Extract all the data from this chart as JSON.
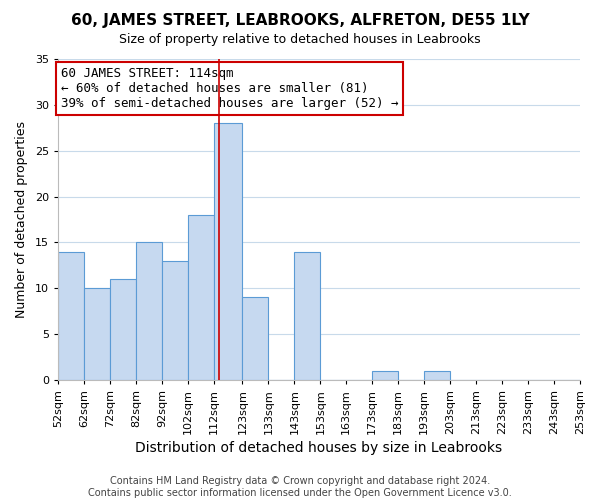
{
  "title": "60, JAMES STREET, LEABROOKS, ALFRETON, DE55 1LY",
  "subtitle": "Size of property relative to detached houses in Leabrooks",
  "xlabel": "Distribution of detached houses by size in Leabrooks",
  "ylabel": "Number of detached properties",
  "footer_line1": "Contains HM Land Registry data © Crown copyright and database right 2024.",
  "footer_line2": "Contains public sector information licensed under the Open Government Licence v3.0.",
  "annotation_title": "60 JAMES STREET: 114sqm",
  "annotation_line2": "← 60% of detached houses are smaller (81)",
  "annotation_line3": "39% of semi-detached houses are larger (52) →",
  "bar_edges": [
    52,
    62,
    72,
    82,
    92,
    102,
    112,
    123,
    133,
    143,
    153,
    163,
    173,
    183,
    193,
    203,
    213,
    223,
    233,
    243,
    253
  ],
  "bar_heights": [
    14,
    10,
    11,
    15,
    13,
    18,
    28,
    9,
    0,
    14,
    0,
    0,
    1,
    0,
    1,
    0,
    0,
    0,
    0,
    0
  ],
  "bar_color": "#c6d9f0",
  "bar_edgecolor": "#5b9bd5",
  "property_line_x": 114,
  "property_line_color": "#cc0000",
  "ylim": [
    0,
    35
  ],
  "xlim": [
    52,
    253
  ],
  "background_color": "#ffffff",
  "grid_color": "#c8daea",
  "annotation_box_edgecolor": "#cc0000",
  "title_fontsize": 11,
  "subtitle_fontsize": 9,
  "xlabel_fontsize": 10,
  "ylabel_fontsize": 9,
  "tick_fontsize": 8,
  "footer_fontsize": 7,
  "annotation_fontsize": 9
}
